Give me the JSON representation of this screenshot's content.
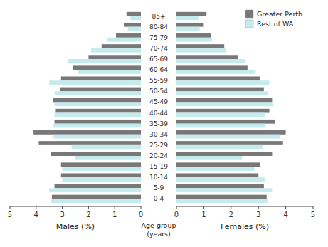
{
  "chart_data": [
    {
      "type": "bar",
      "orientation": "horizontal",
      "categories": [
        "0-4",
        "5-9",
        "10-14",
        "15-19",
        "20-24",
        "25-29",
        "30-34",
        "35-39",
        "40-44",
        "45-49",
        "50-54",
        "55-59",
        "60-64",
        "65-69",
        "70-74",
        "75-79",
        "80-84",
        "85+"
      ],
      "xlabel": "Males (%)",
      "ylabel": "Age group\n(years)",
      "xlim": [
        5,
        0
      ],
      "xticks": [
        5,
        4,
        3,
        2,
        1,
        0
      ],
      "series": [
        {
          "color": "#787878",
          "values": [
            3.4,
            3.3,
            3.05,
            3.05,
            3.45,
            3.9,
            4.1,
            3.3,
            3.25,
            3.35,
            3.1,
            3.05,
            2.6,
            2.0,
            1.5,
            0.95,
            0.65,
            0.55
          ]
        },
        {
          "color": "#c5ecec",
          "values": [
            3.45,
            3.5,
            3.0,
            3.0,
            2.5,
            2.65,
            3.35,
            3.35,
            3.3,
            3.3,
            3.3,
            3.5,
            2.4,
            2.8,
            1.9,
            1.3,
            0.5,
            0.4
          ]
        }
      ]
    },
    {
      "type": "bar",
      "orientation": "horizontal",
      "tick_labels": "x",
      "categories": [
        "0-4",
        "5-9",
        "10-14",
        "15-19",
        "20-24",
        "25-29",
        "30-34",
        "35-39",
        "40-44",
        "45-49",
        "50-54",
        "55-59",
        "60-64",
        "65-69",
        "70-74",
        "75-79",
        "80-84",
        "85+"
      ],
      "xlabel": "Females (%)",
      "xlim": [
        0,
        5
      ],
      "xticks": [
        0,
        1,
        2,
        3,
        4,
        5
      ],
      "legend": "upper right",
      "series": [
        {
          "name": "Greater Perth",
          "color": "#787878",
          "values": [
            3.3,
            3.2,
            3.0,
            3.05,
            3.5,
            3.9,
            4.0,
            3.6,
            3.4,
            3.5,
            3.2,
            3.05,
            2.6,
            2.25,
            1.75,
            1.25,
            1.0,
            1.1
          ]
        },
        {
          "name": "Rest of WA",
          "color": "#c5ecec",
          "values": [
            3.35,
            3.5,
            3.25,
            2.85,
            2.4,
            3.15,
            3.8,
            3.25,
            3.25,
            3.55,
            3.35,
            3.4,
            2.9,
            2.5,
            1.8,
            1.3,
            0.85,
            0.8
          ]
        }
      ]
    }
  ]
}
